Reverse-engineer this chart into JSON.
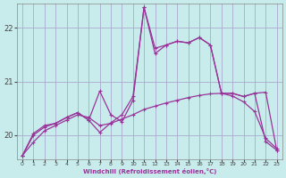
{
  "xlabel": "Windchill (Refroidissement éolien,°C)",
  "bg_color": "#c8ecec",
  "grid_color": "#aaaacc",
  "line_color": "#993399",
  "x_ticks": [
    0,
    1,
    2,
    3,
    4,
    5,
    6,
    7,
    8,
    9,
    10,
    11,
    12,
    13,
    14,
    15,
    16,
    17,
    18,
    19,
    20,
    21,
    22,
    23
  ],
  "ylim": [
    19.55,
    22.45
  ],
  "yticks": [
    20,
    21,
    22
  ],
  "line1_y": [
    19.62,
    19.87,
    20.08,
    20.18,
    20.28,
    20.38,
    20.33,
    20.18,
    20.22,
    20.3,
    20.38,
    20.48,
    20.54,
    20.6,
    20.65,
    20.7,
    20.74,
    20.77,
    20.78,
    20.73,
    20.62,
    20.44,
    19.94,
    19.75
  ],
  "line2_y": [
    19.62,
    20.03,
    20.18,
    20.22,
    20.33,
    20.42,
    20.28,
    20.05,
    20.23,
    20.38,
    20.72,
    22.38,
    21.62,
    21.68,
    21.75,
    21.72,
    21.82,
    21.68,
    20.78,
    20.78,
    20.72,
    20.78,
    19.88,
    19.72
  ],
  "line3_y": [
    19.62,
    20.0,
    20.15,
    20.22,
    20.33,
    20.42,
    20.28,
    20.82,
    20.38,
    20.25,
    20.65,
    22.38,
    21.52,
    21.68,
    21.75,
    21.72,
    21.82,
    21.68,
    20.78,
    20.78,
    20.72,
    20.78,
    20.8,
    19.72
  ]
}
